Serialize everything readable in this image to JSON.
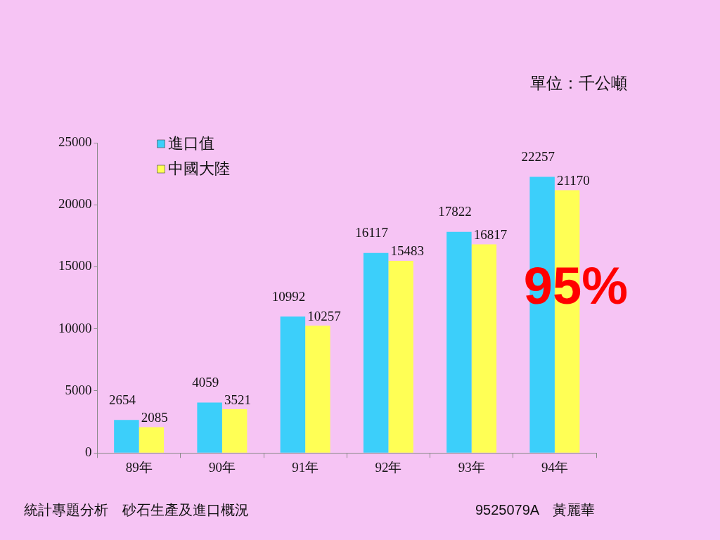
{
  "chart_data": {
    "type": "bar",
    "categories": [
      "89年",
      "90年",
      "91年",
      "92年",
      "93年",
      "94年"
    ],
    "series": [
      {
        "name": "進口值",
        "color": "#3ccffa",
        "values": [
          2654,
          4059,
          10992,
          16117,
          17822,
          22257
        ]
      },
      {
        "name": "中國大陸",
        "color": "#ffff55",
        "values": [
          2085,
          3521,
          10257,
          15483,
          16817,
          21170
        ]
      }
    ],
    "ylim": [
      0,
      25000
    ],
    "yticks": [
      0,
      5000,
      10000,
      15000,
      20000,
      25000
    ],
    "grid": false,
    "legend": "top left",
    "data_labels": true,
    "annotations": [
      "單位：千公噸",
      {
        "text": "95%",
        "x": "94年",
        "y": 13200
      },
      "統計專題分析　砂石生產及進口概況",
      "9525079A　黃麗華"
    ]
  }
}
